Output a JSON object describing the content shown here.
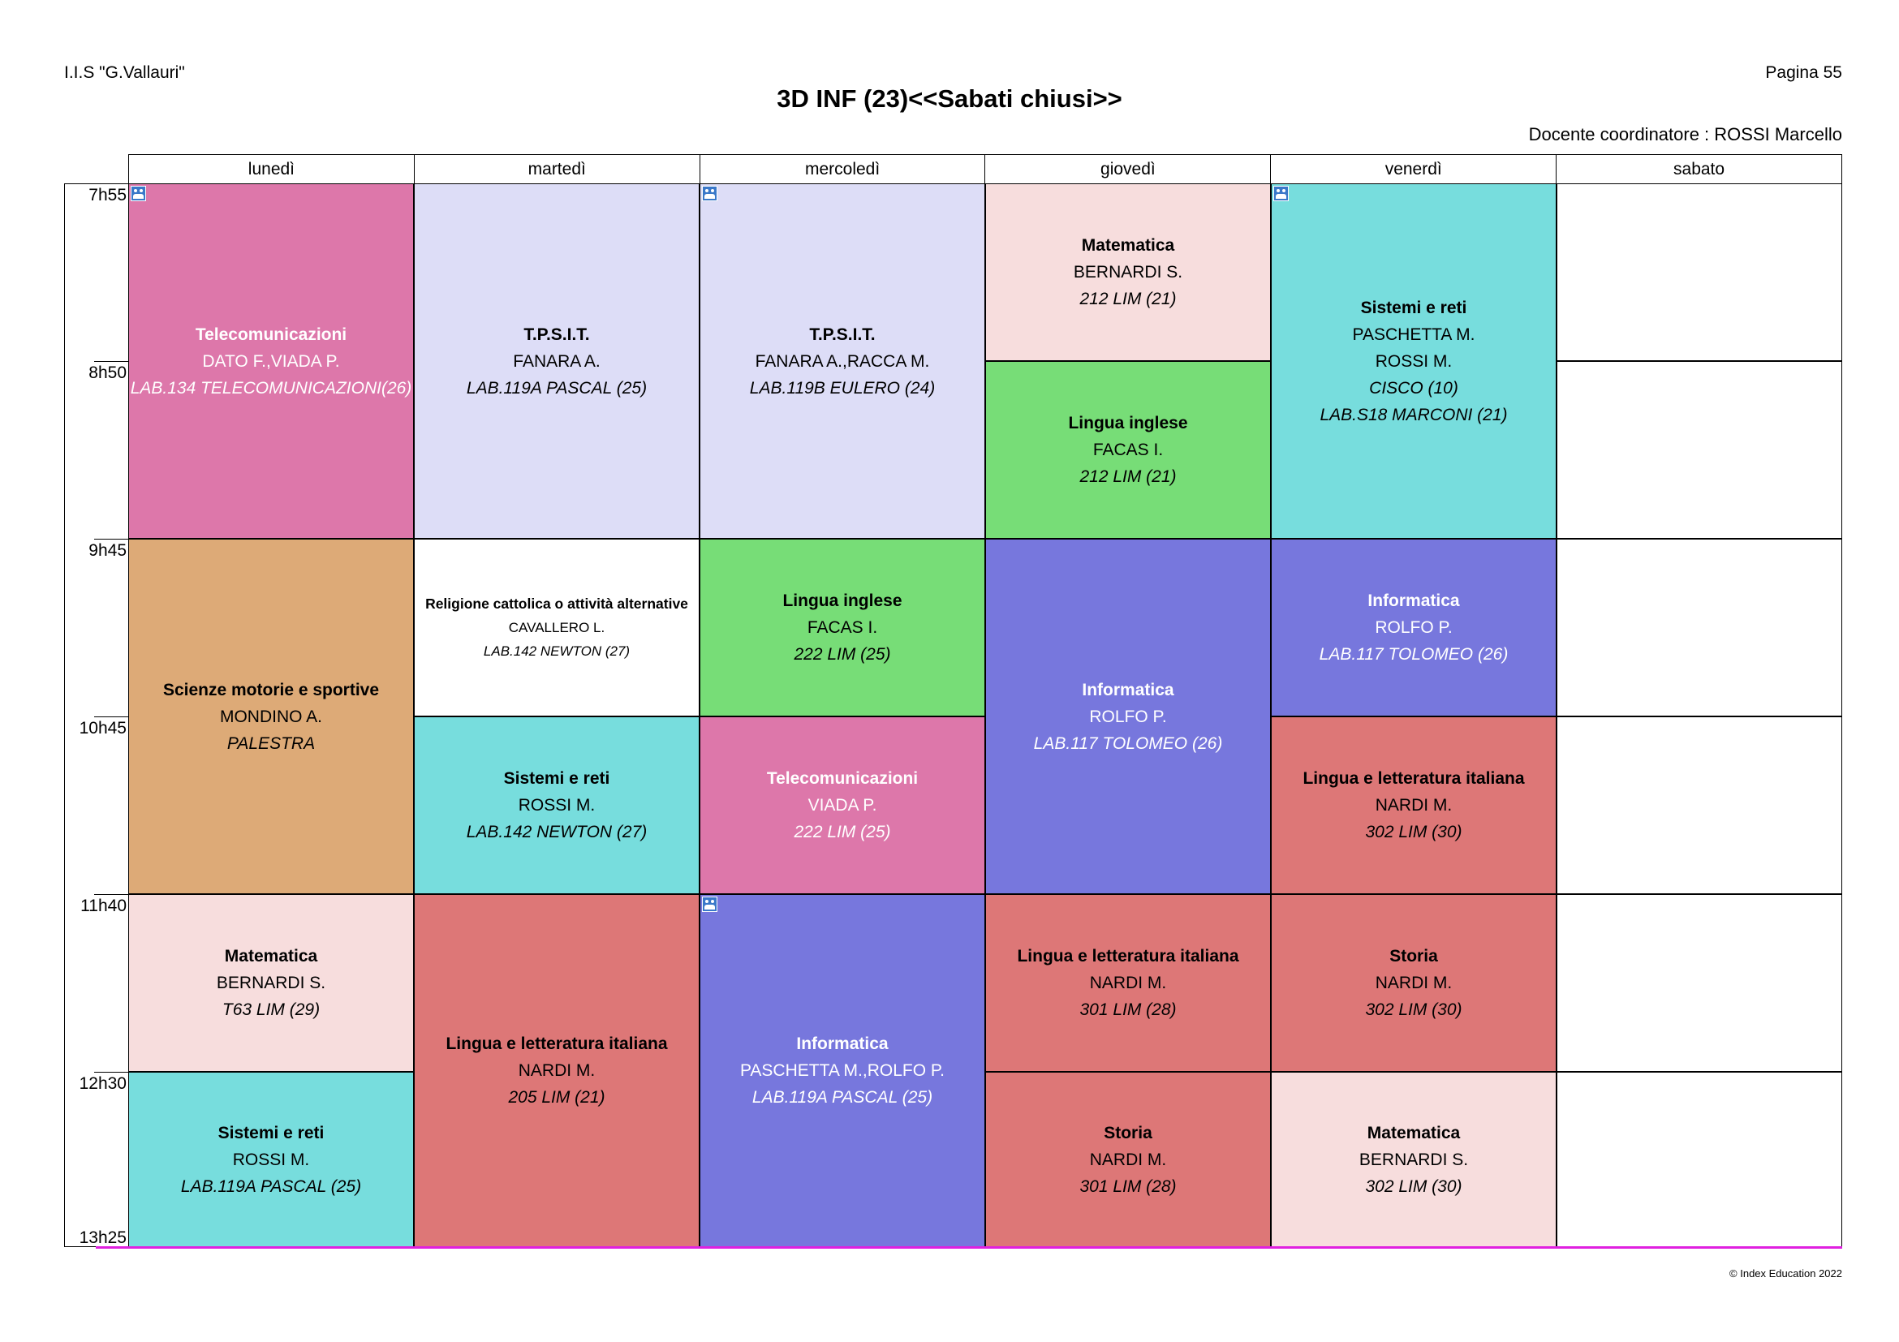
{
  "header": {
    "school": "I.I.S \"G.Vallauri\"",
    "page": "Pagina 55",
    "title": "3D INF (23)<<Sabati chiusi>>",
    "coordinator": "Docente coordinatore : ROSSI Marcello"
  },
  "days": [
    "lunedì",
    "martedì",
    "mercoledì",
    "giovedì",
    "venerdì",
    "sabato"
  ],
  "times": [
    "7h55",
    "8h50",
    "9h45",
    "10h45",
    "11h40",
    "12h30",
    "13h25"
  ],
  "lessons": [
    {
      "subject": "Telecomunicazioni",
      "teacher": "DATO F.,VIADA P.",
      "room": "LAB.134 TELECOMUNICAZIONI(26)",
      "color": "#dd77aa",
      "group_icon": true
    },
    {
      "subject": "T.P.S.I.T.",
      "teacher": "FANARA A.",
      "room": "LAB.119A PASCAL (25)",
      "color": "#ddddf7",
      "group_icon": false
    },
    {
      "subject": "T.P.S.I.T.",
      "teacher": "FANARA A.,RACCA M.",
      "room": "LAB.119B EULERO (24)",
      "color": "#ddddf7",
      "group_icon": true
    },
    {
      "subject": "Matematica",
      "teacher": "BERNARDI S.",
      "room": "212 LIM (21)",
      "color": "#f7dddd",
      "group_icon": false
    },
    {
      "subject": "Lingua inglese",
      "teacher": "FACAS I.",
      "room": "212 LIM (21)",
      "color": "#77dd77",
      "group_icon": false
    },
    {
      "subject": "Sistemi e reti",
      "teacher": "PASCHETTA M.",
      "teacher2": "ROSSI M.",
      "room": "CISCO (10)",
      "room2": "LAB.S18 MARCONI (21)",
      "color": "#77dddd",
      "group_icon": true
    },
    {
      "subject": "Scienze motorie e sportive",
      "teacher": "MONDINO A.",
      "room": "PALESTRA",
      "color": "#ddaa77",
      "group_icon": false
    },
    {
      "subject": "Religione cattolica o attività alternative",
      "teacher": "CAVALLERO L.",
      "room": "LAB.142 NEWTON (27)",
      "color": "#ffffff",
      "group_icon": false
    },
    {
      "subject": "Lingua inglese",
      "teacher": "FACAS I.",
      "room": "222 LIM (25)",
      "color": "#77dd77",
      "group_icon": false
    },
    {
      "subject": "Informatica",
      "teacher": "ROLFO P.",
      "room": "LAB.117 TOLOMEO (26)",
      "color": "#7777dd",
      "group_icon": false
    },
    {
      "subject": "Informatica",
      "teacher": "ROLFO P.",
      "room": "LAB.117 TOLOMEO (26)",
      "color": "#7777dd",
      "group_icon": false
    },
    {
      "subject": "Sistemi e reti",
      "teacher": "ROSSI M.",
      "room": "LAB.142 NEWTON (27)",
      "color": "#77dddd",
      "group_icon": false
    },
    {
      "subject": "Telecomunicazioni",
      "teacher": "VIADA P.",
      "room": "222 LIM (25)",
      "color": "#dd77aa",
      "group_icon": false
    },
    {
      "subject": "Lingua e letteratura italiana",
      "teacher": "NARDI M.",
      "room": "302 LIM (30)",
      "color": "#dd7777",
      "group_icon": false
    },
    {
      "subject": "Matematica",
      "teacher": "BERNARDI S.",
      "room": "T63 LIM (29)",
      "color": "#f7dddd",
      "group_icon": false
    },
    {
      "subject": "Lingua e letteratura italiana",
      "teacher": "NARDI M.",
      "room": "205 LIM (21)",
      "color": "#dd7777",
      "group_icon": false
    },
    {
      "subject": "Informatica",
      "teacher": "PASCHETTA M.,ROLFO P.",
      "room": "LAB.119A PASCAL (25)",
      "color": "#7777dd",
      "group_icon": true
    },
    {
      "subject": "Lingua e letteratura italiana",
      "teacher": "NARDI M.",
      "room": "301 LIM (28)",
      "color": "#dd7777",
      "group_icon": false
    },
    {
      "subject": "Storia",
      "teacher": "NARDI M.",
      "room": "302 LIM (30)",
      "color": "#dd7777",
      "group_icon": false
    },
    {
      "subject": "Sistemi e reti",
      "teacher": "ROSSI M.",
      "room": "LAB.119A PASCAL (25)",
      "color": "#77dddd",
      "group_icon": false
    },
    {
      "subject": "Storia",
      "teacher": "NARDI M.",
      "room": "301 LIM (28)",
      "color": "#dd7777",
      "group_icon": false
    },
    {
      "subject": "Matematica",
      "teacher": "BERNARDI S.",
      "room": "302 LIM (30)",
      "color": "#f7dddd",
      "group_icon": false
    }
  ],
  "footer": "© Index Education 2022"
}
